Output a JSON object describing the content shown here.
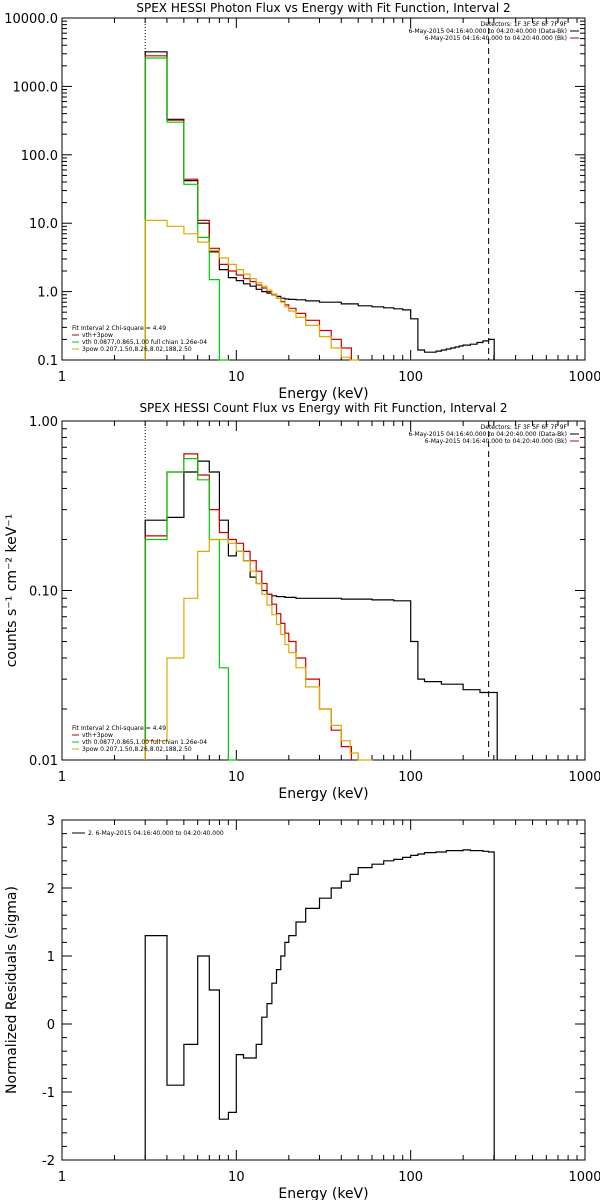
{
  "chart_data": [
    {
      "type": "line",
      "title": "SPEX HESSI Photon Flux vs Energy with Fit Function, Interval 2",
      "xlabel": "Energy (keV)",
      "ylabel": "",
      "xscale": "log",
      "yscale": "log",
      "xlim": [
        1,
        1000
      ],
      "ylim": [
        0.1,
        10000
      ],
      "xticks": [
        "1",
        "10",
        "100",
        "1000"
      ],
      "yticks": [
        "0.1",
        "1.0",
        "10.0",
        "100.0",
        "1000.0",
        "10000.0"
      ],
      "info_lines": [
        "Detectors: 1F 3F 5F 6F 7F 9F",
        "6-May-2015 04:16:40.000 to 04:20:40.000 (Data-Bk)",
        "6-May-2015 04:16:40.000 to 04:20:40.000 (Bk)"
      ],
      "fit_legend": {
        "header": "Fit Interval 2   Chi-square = 4.49",
        "items": [
          {
            "label": "vth+3pow",
            "color": "#cc0000"
          },
          {
            "label": "vth 0.0877,0.865,1.00  full chian 1.26e-04",
            "color": "#00cc00"
          },
          {
            "label": "3pow 0.207,1.50,8.26,8.02,188,2.50",
            "color": "#ddaa00"
          }
        ]
      },
      "marker_lines_keV": [
        3,
        280
      ],
      "series": [
        {
          "name": "Data-Bk",
          "color": "#000000",
          "x": [
            3,
            4,
            5,
            6,
            7,
            8,
            9,
            10,
            11,
            12,
            13,
            14,
            15,
            16,
            17,
            18,
            19,
            20,
            22,
            25,
            30,
            40,
            50,
            60,
            70,
            80,
            90,
            100,
            110,
            120,
            130,
            140,
            150,
            160,
            170,
            180,
            190,
            200,
            220,
            240,
            260,
            280
          ],
          "y": [
            3200,
            330,
            42,
            10,
            3.8,
            2.1,
            1.6,
            1.45,
            1.3,
            1.2,
            1.08,
            1.0,
            0.95,
            0.9,
            0.85,
            0.8,
            0.78,
            0.77,
            0.76,
            0.73,
            0.7,
            0.66,
            0.62,
            0.6,
            0.58,
            0.56,
            0.54,
            0.4,
            0.14,
            0.13,
            0.13,
            0.135,
            0.14,
            0.145,
            0.15,
            0.155,
            0.16,
            0.165,
            0.17,
            0.18,
            0.19,
            0.2
          ]
        },
        {
          "name": "vth+3pow",
          "color": "#cc0000",
          "x": [
            3,
            4,
            5,
            6,
            7,
            8,
            9,
            10,
            11,
            12,
            13,
            14,
            15,
            16,
            17,
            18,
            19,
            20,
            22,
            25,
            30,
            35,
            40
          ],
          "y": [
            2800,
            320,
            44,
            11,
            4.3,
            2.5,
            2.0,
            1.75,
            1.55,
            1.4,
            1.25,
            1.13,
            1.0,
            0.9,
            0.8,
            0.72,
            0.64,
            0.57,
            0.48,
            0.38,
            0.27,
            0.2,
            0.15
          ]
        },
        {
          "name": "vth",
          "color": "#00cc00",
          "x": [
            3,
            4,
            5,
            6,
            7,
            8
          ],
          "y": [
            2600,
            300,
            37,
            6.2,
            1.5,
            0.1
          ]
        },
        {
          "name": "3pow",
          "color": "#ddaa00",
          "x": [
            3,
            4,
            5,
            6,
            7,
            8,
            9,
            10,
            11,
            12,
            13,
            14,
            15,
            16,
            17,
            18,
            19,
            20,
            22,
            25,
            30,
            35,
            40,
            45
          ],
          "y": [
            11,
            9,
            7,
            5.3,
            4,
            3.1,
            2.5,
            2.1,
            1.8,
            1.55,
            1.35,
            1.2,
            1.05,
            0.92,
            0.8,
            0.7,
            0.6,
            0.52,
            0.42,
            0.32,
            0.22,
            0.15,
            0.11,
            0.1
          ]
        }
      ]
    },
    {
      "type": "line",
      "title": "SPEX HESSI Count Flux vs Energy with Fit Function, Interval 2",
      "xlabel": "Energy (keV)",
      "ylabel": "counts s⁻¹ cm⁻² keV⁻¹",
      "xscale": "log",
      "yscale": "log",
      "xlim": [
        1,
        1000
      ],
      "ylim": [
        0.01,
        1.0
      ],
      "xticks": [
        "1",
        "10",
        "100",
        "1000"
      ],
      "yticks": [
        "0.01",
        "0.10",
        "1.00"
      ],
      "info_lines": [
        "Detectors: 1F 3F 5F 6F 7F 9F",
        "6-May-2015 04:16:40.000 to 04:20:40.000 (Data-Bk)",
        "6-May-2015 04:16:40.000 to 04:20:40.000 (Bk)"
      ],
      "fit_legend": {
        "header": "Fit Interval 2   Chi-square = 4.49",
        "items": [
          {
            "label": "vth+3pow",
            "color": "#cc0000"
          },
          {
            "label": "vth 0.0877,0.865,1.00  full chian 1.26e-04",
            "color": "#00cc00"
          },
          {
            "label": "3pow 0.207,1.50,8.26,8.02,188,2.50",
            "color": "#ddaa00"
          }
        ]
      },
      "marker_lines_keV": [
        3,
        280
      ],
      "series": [
        {
          "name": "Data-Bk",
          "color": "#000000",
          "x": [
            3,
            4,
            5,
            6,
            7,
            8,
            9,
            10,
            11,
            12,
            13,
            14,
            15,
            16,
            17,
            18,
            19,
            20,
            22,
            25,
            30,
            40,
            50,
            60,
            70,
            80,
            90,
            100,
            110,
            120,
            150,
            200,
            250,
            280
          ],
          "y": [
            0.26,
            0.27,
            0.5,
            0.58,
            0.5,
            0.26,
            0.16,
            0.17,
            0.15,
            0.12,
            0.11,
            0.1,
            0.095,
            0.093,
            0.092,
            0.092,
            0.091,
            0.091,
            0.09,
            0.09,
            0.09,
            0.089,
            0.089,
            0.088,
            0.088,
            0.087,
            0.087,
            0.05,
            0.03,
            0.029,
            0.028,
            0.026,
            0.025,
            0.025
          ]
        },
        {
          "name": "vth+3pow",
          "color": "#cc0000",
          "x": [
            3,
            4,
            5,
            6,
            7,
            8,
            9,
            10,
            11,
            12,
            13,
            14,
            15,
            16,
            17,
            18,
            19,
            20,
            22,
            25,
            30,
            35,
            40
          ],
          "y": [
            0.21,
            0.5,
            0.64,
            0.48,
            0.3,
            0.22,
            0.2,
            0.19,
            0.17,
            0.15,
            0.13,
            0.11,
            0.095,
            0.083,
            0.073,
            0.064,
            0.056,
            0.05,
            0.04,
            0.03,
            0.02,
            0.015,
            0.012
          ]
        },
        {
          "name": "vth",
          "color": "#00cc00",
          "x": [
            3,
            4,
            5,
            6,
            7,
            8,
            9
          ],
          "y": [
            0.2,
            0.5,
            0.6,
            0.45,
            0.2,
            0.035,
            0.01
          ]
        },
        {
          "name": "3pow",
          "color": "#ddaa00",
          "x": [
            3,
            4,
            5,
            6,
            7,
            8,
            9,
            10,
            11,
            12,
            13,
            14,
            15,
            16,
            17,
            18,
            19,
            20,
            22,
            25,
            30,
            35,
            40,
            45,
            50,
            55
          ],
          "y": [
            0.013,
            0.04,
            0.09,
            0.17,
            0.2,
            0.2,
            0.19,
            0.17,
            0.15,
            0.13,
            0.11,
            0.095,
            0.082,
            0.072,
            0.063,
            0.055,
            0.048,
            0.043,
            0.035,
            0.027,
            0.02,
            0.016,
            0.013,
            0.011,
            0.01,
            0.01
          ]
        }
      ]
    },
    {
      "type": "line",
      "title": "",
      "xlabel": "Energy (keV)",
      "ylabel": "Normalized Residuals (sigma)",
      "xscale": "log",
      "xlim": [
        1,
        1000
      ],
      "ylim": [
        -2,
        3
      ],
      "xticks": [
        "1",
        "10",
        "100",
        "1000"
      ],
      "yticks": [
        "-2",
        "-1",
        "0",
        "1",
        "2",
        "3"
      ],
      "legend_text": "2.  6-May-2015 04:16:40.000 to 04:20:40.000",
      "series": [
        {
          "name": "residuals",
          "color": "#000000",
          "x": [
            3,
            4,
            5,
            6,
            7,
            8,
            9,
            10,
            11,
            12,
            13,
            14,
            15,
            16,
            17,
            18,
            19,
            20,
            22,
            25,
            30,
            35,
            40,
            45,
            50,
            60,
            70,
            80,
            90,
            100,
            110,
            120,
            140,
            160,
            180,
            200,
            220,
            240,
            260,
            280
          ],
          "y": [
            1.3,
            -0.9,
            -0.3,
            1.0,
            0.5,
            -1.4,
            -1.3,
            -0.45,
            -0.5,
            -0.5,
            -0.3,
            0.1,
            0.3,
            0.6,
            0.8,
            1.0,
            1.2,
            1.3,
            1.5,
            1.7,
            1.85,
            2.0,
            2.1,
            2.2,
            2.3,
            2.35,
            2.4,
            2.42,
            2.45,
            2.48,
            2.5,
            2.52,
            2.53,
            2.55,
            2.55,
            2.56,
            2.55,
            2.55,
            2.54,
            2.53
          ]
        }
      ]
    }
  ]
}
